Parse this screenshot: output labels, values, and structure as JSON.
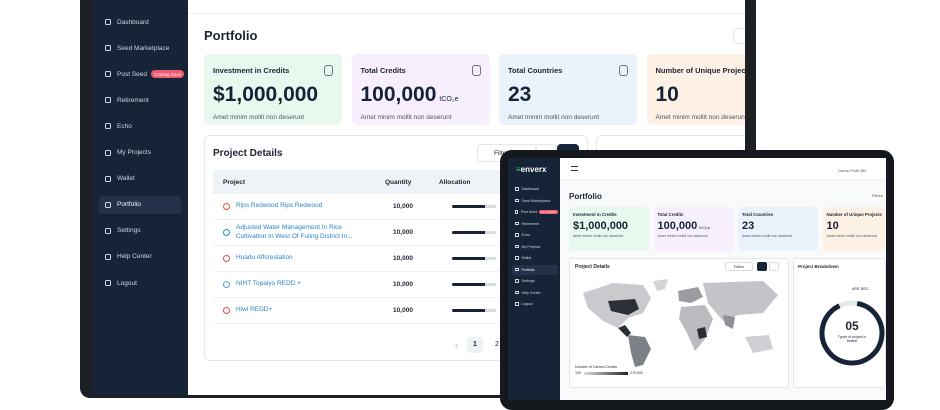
{
  "laptop": {
    "sidebar": [
      {
        "label": "Dashboard"
      },
      {
        "label": "Seed Marketplace"
      },
      {
        "label": "Post Seed",
        "badge": "Coming Soon"
      },
      {
        "label": "Retirement"
      },
      {
        "label": "Echo"
      },
      {
        "label": "My Projects"
      },
      {
        "label": "Wallet"
      },
      {
        "label": "Portfolio"
      },
      {
        "label": "Settings"
      },
      {
        "label": "Help Center"
      },
      {
        "label": "Logout"
      }
    ],
    "page_title": "Portfolio",
    "cards": [
      {
        "label": "Investment in Credits",
        "value": "$1,000,000",
        "note": "Amet minim mollit non deserunt"
      },
      {
        "label": "Total Credits",
        "value": "100,000",
        "unit": "tCO₂e",
        "note": "Amet minim mollit non deserunt"
      },
      {
        "label": "Total Countries",
        "value": "23",
        "note": "Amet minim mollit non deserunt"
      },
      {
        "label": "Number of Unique Projects",
        "value": "10",
        "note": "Amet minim mollit non deserunt"
      }
    ],
    "project_details": {
      "title": "Project Details",
      "filter": "Filte",
      "columns": [
        "Project",
        "Quantity",
        "Allocation"
      ],
      "rows": [
        [
          "Rips Redwood Rips Redwood",
          "10,000"
        ],
        [
          "Adjusted Water Management In Rice Cultivation In West Of Fuling District In...",
          "10,000"
        ],
        [
          "Huadu Affcrestation",
          "10,000"
        ],
        [
          "NIHT Topaiyo REDD +",
          "10,000"
        ],
        [
          "Hiwi REDD+",
          "10,000"
        ]
      ],
      "pages": [
        "1",
        "2"
      ]
    }
  },
  "tablet": {
    "logo": "enverx",
    "header_text": "Carbon Profit: $40",
    "sidebar": [
      {
        "label": "Dashboard"
      },
      {
        "label": "Seed Marketplace"
      },
      {
        "label": "Post Seed",
        "badge": "Coming Soon"
      },
      {
        "label": "Retirement"
      },
      {
        "label": "Echo"
      },
      {
        "label": "My Projects"
      },
      {
        "label": "Wallet"
      },
      {
        "label": "Portfolio"
      },
      {
        "label": "Settings"
      },
      {
        "label": "Help Center"
      },
      {
        "label": "Logout"
      }
    ],
    "page_title": "Portfolio",
    "filters": "Filters",
    "cards": [
      {
        "label": "Investment in Credits",
        "value": "$1,000,000",
        "note": "Amet minim mollit non deserunt"
      },
      {
        "label": "Total Credits",
        "value": "100,000",
        "unit": "tCO₂e",
        "note": "Amet minim mollit non deserunt"
      },
      {
        "label": "Total Countries",
        "value": "23",
        "note": "Amet minim mollit non deserunt"
      },
      {
        "label": "Number of Unique Projects",
        "value": "10",
        "note": "Amet minim mollit non deserunt"
      }
    ],
    "project_details": {
      "title": "Project Details",
      "filter": "Filters",
      "legend_title": "Number of Carbon Credits",
      "legend_min": "100",
      "legend_max": "270,000"
    },
    "breakdown": {
      "title": "Project Breakdown",
      "legend_label": "ARR",
      "legend_value": "1823...",
      "center_value": "05",
      "center_label": "Types of project in basket"
    }
  }
}
